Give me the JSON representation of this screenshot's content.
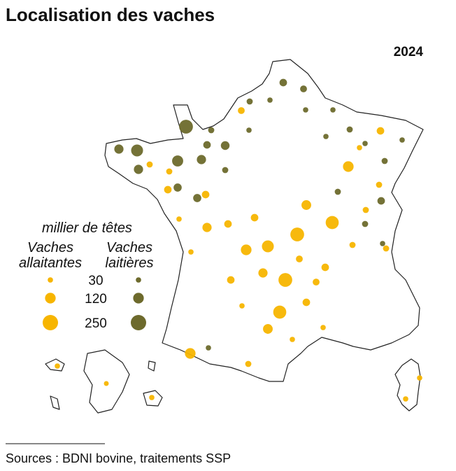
{
  "title": "Localisation des vaches",
  "year": "2024",
  "legend": {
    "title": "millier de têtes",
    "groups": [
      {
        "lines": [
          "Vaches",
          "allaitantes"
        ],
        "color": "#f7b500"
      },
      {
        "lines": [
          "Vaches",
          "laitières"
        ],
        "color": "#6d6a2c"
      }
    ],
    "values": [
      30,
      120,
      250
    ]
  },
  "bubbles": {
    "allaitantes": [
      120,
      200,
      180,
      200,
      180,
      150,
      120,
      120,
      90,
      100,
      100,
      90,
      60,
      60,
      60,
      60,
      40,
      60,
      60,
      50,
      60,
      50,
      40,
      60,
      50,
      40,
      40,
      40,
      40,
      40,
      30,
      30,
      30,
      25,
      30,
      30,
      30,
      30,
      30,
      30,
      30
    ],
    "laitieres": [
      200,
      150,
      130,
      90,
      90,
      90,
      80,
      60,
      70,
      70,
      60,
      50,
      60,
      40,
      30,
      40,
      40,
      30,
      40,
      30,
      30,
      30,
      30,
      30,
      40,
      40,
      40,
      30,
      30
    ]
  },
  "source": "Sources : BDNI bovine, traitements SSP"
}
